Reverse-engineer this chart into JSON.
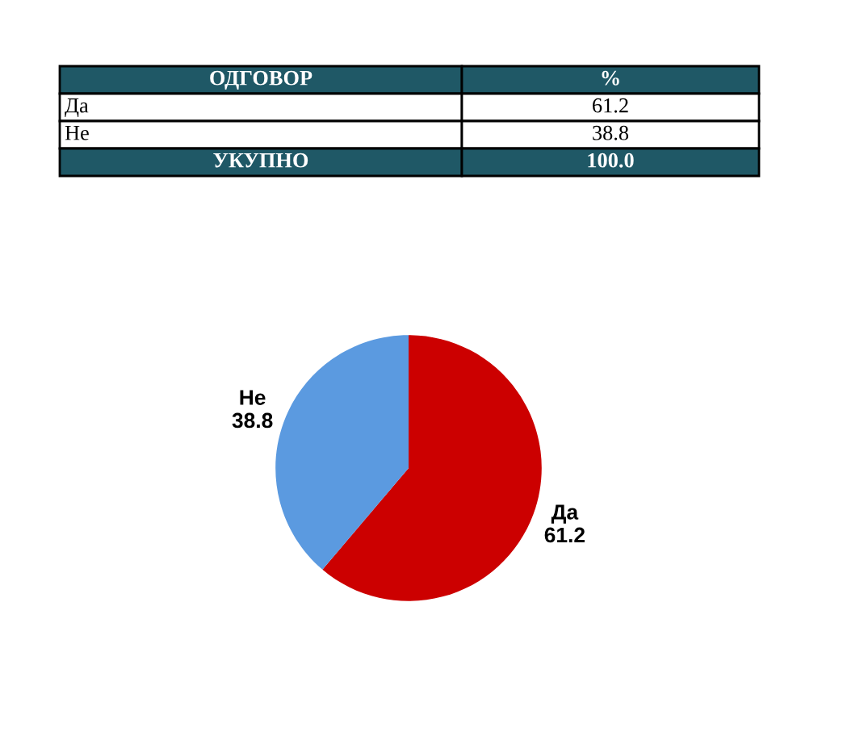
{
  "chart_data": {
    "type": "pie",
    "categories": [
      "Да",
      "Не"
    ],
    "values": [
      61.2,
      38.8
    ],
    "colors": [
      "#cc0000",
      "#5b9ae0"
    ],
    "data_labels": true,
    "annotations": [
      "ОДГОВОР",
      "%",
      "Да",
      "61.2",
      "Не",
      "38.8",
      "УКУПНО",
      "100.0"
    ]
  }
}
